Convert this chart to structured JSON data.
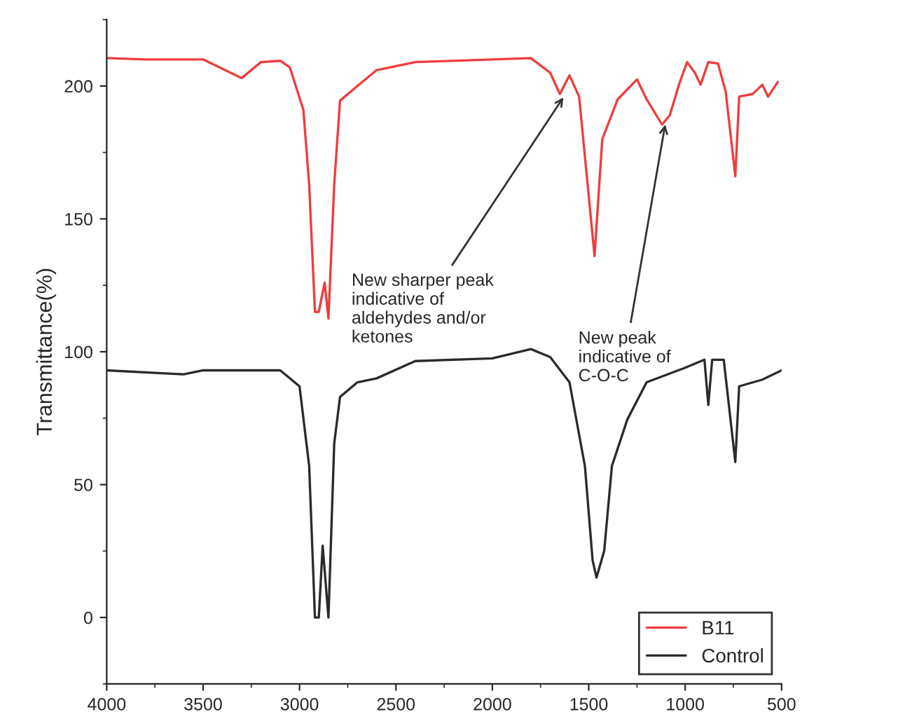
{
  "chart_data": {
    "type": "line",
    "ylabel": "Transmittance(%)",
    "xlim": [
      4000,
      500
    ],
    "xticks": [
      4000,
      3500,
      3000,
      2500,
      2000,
      1500,
      1000,
      500
    ],
    "ylim": [
      -25,
      225
    ],
    "yticks": [
      0,
      50,
      100,
      150,
      200
    ],
    "grid": false,
    "legend": "bottom right",
    "marker": "none",
    "line_style": "solid",
    "series": [
      {
        "name": "B11",
        "color": "#f03c3c",
        "x": [
          4000,
          3800,
          3500,
          3300,
          3200,
          3100,
          3050,
          2980,
          2950,
          2920,
          2900,
          2870,
          2850,
          2820,
          2790,
          2700,
          2600,
          2400,
          2000,
          1800,
          1700,
          1650,
          1600,
          1550,
          1470,
          1430,
          1350,
          1250,
          1200,
          1120,
          1080,
          1030,
          990,
          950,
          920,
          880,
          830,
          790,
          740,
          720,
          650,
          600,
          570,
          520
        ],
        "values": [
          210.5,
          210,
          210,
          203,
          209,
          209.5,
          207,
          191,
          163,
          115,
          115,
          126,
          112.5,
          163,
          194.5,
          200,
          206,
          209,
          210,
          210.5,
          205,
          197,
          204,
          196,
          136,
          180,
          195,
          202.5,
          195,
          185.5,
          189,
          201,
          209,
          205,
          200.5,
          209,
          208.5,
          198,
          166,
          196,
          197,
          200.5,
          196,
          201.5
        ]
      },
      {
        "name": "Control",
        "color": "#2b2b2b",
        "x": [
          4000,
          3600,
          3500,
          3100,
          3000,
          2950,
          2920,
          2900,
          2880,
          2850,
          2820,
          2790,
          2700,
          2600,
          2400,
          2000,
          1800,
          1700,
          1600,
          1520,
          1480,
          1460,
          1420,
          1380,
          1300,
          1200,
          1000,
          900,
          880,
          860,
          800,
          740,
          720,
          600,
          500
        ],
        "values": [
          93,
          91.5,
          93,
          93,
          87,
          57,
          0,
          0,
          27,
          0,
          65.5,
          83,
          88.5,
          90,
          96.5,
          97.5,
          101,
          98,
          88.5,
          57,
          21.5,
          15,
          25,
          57,
          74.5,
          88.5,
          94,
          97,
          80,
          97,
          97,
          58.5,
          87,
          89.5,
          93
        ]
      }
    ],
    "annotations": [
      {
        "text": "New sharper peak\nindicative of\naldehydes and/or\nketones",
        "x": 1620,
        "y": 197
      },
      {
        "text": "New peak\nindicative of\nC-O-C",
        "x": 1100,
        "y": 187
      }
    ]
  }
}
